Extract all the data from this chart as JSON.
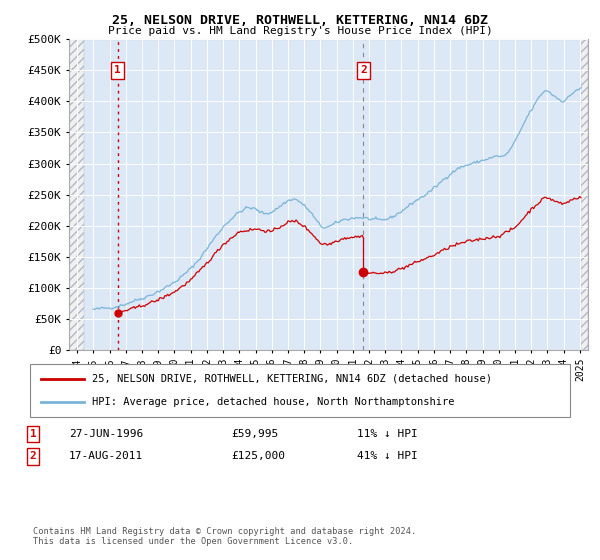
{
  "title1": "25, NELSON DRIVE, ROTHWELL, KETTERING, NN14 6DZ",
  "title2": "Price paid vs. HM Land Registry's House Price Index (HPI)",
  "ylabel_values": [
    "£0",
    "£50K",
    "£100K",
    "£150K",
    "£200K",
    "£250K",
    "£300K",
    "£350K",
    "£400K",
    "£450K",
    "£500K"
  ],
  "yticks": [
    0,
    50000,
    100000,
    150000,
    200000,
    250000,
    300000,
    350000,
    400000,
    450000,
    500000
  ],
  "xlim_start": 1993.5,
  "xlim_end": 2025.5,
  "ylim": [
    0,
    500000
  ],
  "legend_line1": "25, NELSON DRIVE, ROTHWELL, KETTERING, NN14 6DZ (detached house)",
  "legend_line2": "HPI: Average price, detached house, North Northamptonshire",
  "transaction1_date": "27-JUN-1996",
  "transaction1_price": "£59,995",
  "transaction1_pct": "11% ↓ HPI",
  "transaction1_year": 1996.5,
  "transaction1_value": 59995,
  "transaction2_date": "17-AUG-2011",
  "transaction2_price": "£125,000",
  "transaction2_pct": "41% ↓ HPI",
  "transaction2_year": 2011.65,
  "transaction2_value": 125000,
  "copyright_text": "Contains HM Land Registry data © Crown copyright and database right 2024.\nThis data is licensed under the Open Government Licence v3.0.",
  "hpi_color": "#7ab4d8",
  "price_color": "#cc0000",
  "bg_color": "#dce8f5",
  "hatch_bg": "#e8e8e8"
}
